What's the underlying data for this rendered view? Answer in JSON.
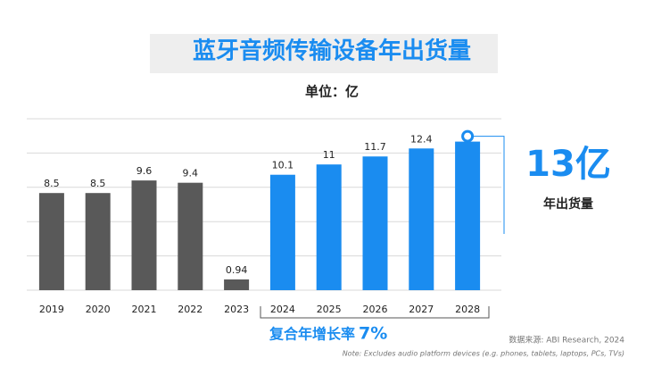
{
  "chart_data": {
    "type": "bar",
    "title": "蓝牙音频传输设备年出货量",
    "subtitle": "单位：亿",
    "categories": [
      "2019",
      "2020",
      "2021",
      "2022",
      "2023",
      "2024",
      "2025",
      "2026",
      "2027",
      "2028"
    ],
    "values": [
      8.5,
      8.5,
      9.6,
      9.4,
      0.94,
      10.1,
      11,
      11.7,
      12.4,
      13
    ],
    "value_labels": [
      "8.5",
      "8.5",
      "9.6",
      "9.4",
      "0.94",
      "10.1",
      "11",
      "11.7",
      "12.4",
      "13亿"
    ],
    "colors": [
      "#595959",
      "#595959",
      "#595959",
      "#595959",
      "#595959",
      "#1a8cf0",
      "#1a8cf0",
      "#1a8cf0",
      "#1a8cf0",
      "#1a8cf0"
    ],
    "ylim": [
      0,
      15
    ],
    "yticks": [
      0,
      3,
      6,
      9,
      12,
      15
    ],
    "grid": true,
    "callout_label": "年出货量",
    "cagr_label": "复合年增长率",
    "cagr_value": "7%",
    "source": "数据来源: ABI Research, 2024",
    "note": "Note: Excludes audio platform devices (e.g. phones, tablets, laptops, PCs, TVs)"
  }
}
